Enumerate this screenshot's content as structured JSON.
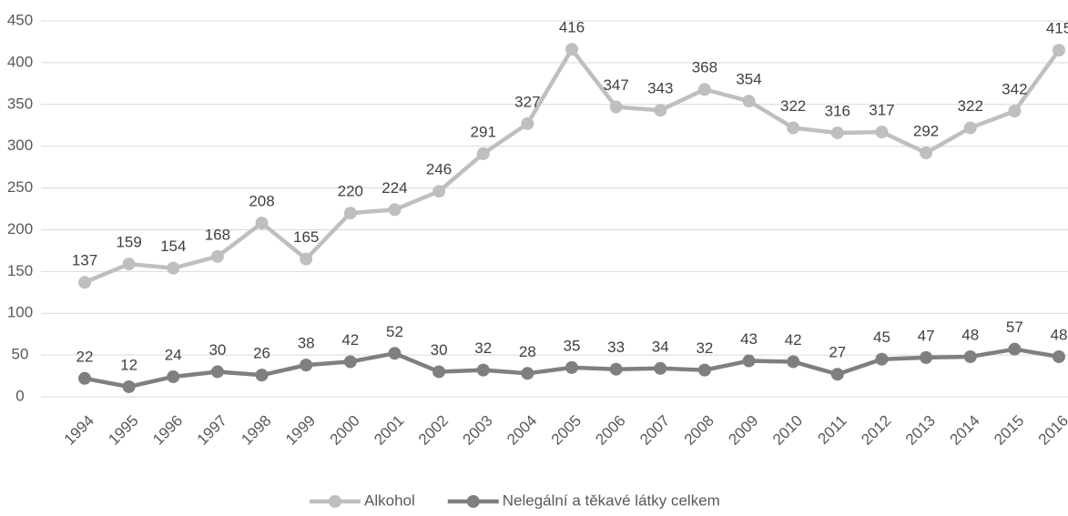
{
  "chart_data": {
    "type": "line",
    "categories": [
      "1994",
      "1995",
      "1996",
      "1997",
      "1998",
      "1999",
      "2000",
      "2001",
      "2002",
      "2003",
      "2004",
      "2005",
      "2006",
      "2007",
      "2008",
      "2009",
      "2010",
      "2011",
      "2012",
      "2013",
      "2014",
      "2015",
      "2016"
    ],
    "series": [
      {
        "name": "Alkohol",
        "color": "#bfbfbf",
        "values": [
          137,
          159,
          154,
          168,
          208,
          165,
          220,
          224,
          246,
          291,
          327,
          416,
          347,
          343,
          368,
          354,
          322,
          316,
          317,
          292,
          322,
          342,
          415
        ]
      },
      {
        "name": "Nelegální a těkavé látky celkem",
        "color": "#7f7f7f",
        "values": [
          22,
          12,
          24,
          30,
          26,
          38,
          42,
          52,
          30,
          32,
          28,
          35,
          33,
          34,
          32,
          43,
          42,
          27,
          45,
          47,
          48,
          57,
          48
        ]
      }
    ],
    "ylim": [
      0,
      450
    ],
    "yticks": [
      0,
      50,
      100,
      150,
      200,
      250,
      300,
      350,
      400,
      450
    ],
    "grid": true,
    "legend": "bottom"
  }
}
